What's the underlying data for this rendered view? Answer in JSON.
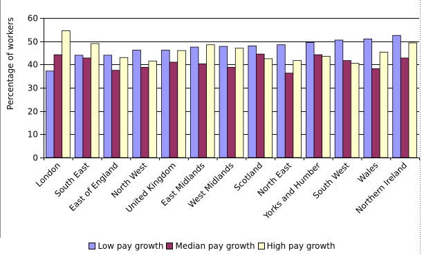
{
  "chart_data": {
    "type": "bar",
    "ylabel": "Percentage of workers",
    "ylim": [
      0,
      60
    ],
    "yticks": [
      0,
      10,
      20,
      30,
      40,
      50,
      60
    ],
    "grid": true,
    "legend_position": "bottom",
    "categories": [
      "London",
      "South East",
      "East of England",
      "North West",
      "United Kingdom",
      "East Midlands",
      "West Midlands",
      "Scotland",
      "North East",
      "Yorks and Humber",
      "South West",
      "Wales",
      "Northern Ireland"
    ],
    "series": [
      {
        "name": "Low pay growth",
        "color": "#9999ff",
        "values": [
          37.2,
          44.0,
          44.0,
          46.2,
          46.2,
          47.5,
          47.8,
          48.0,
          48.5,
          49.5,
          50.5,
          51.0,
          52.5
        ]
      },
      {
        "name": "Median pay growth",
        "color": "#993366",
        "values": [
          44.2,
          42.8,
          37.5,
          38.8,
          41.0,
          40.3,
          38.8,
          44.5,
          36.3,
          44.2,
          41.7,
          38.2,
          42.8
        ]
      },
      {
        "name": "High pay growth",
        "color": "#ffffcc",
        "values": [
          54.5,
          49.0,
          43.0,
          41.5,
          46.0,
          48.5,
          47.0,
          42.5,
          41.7,
          43.5,
          40.5,
          45.3,
          49.3
        ]
      }
    ]
  }
}
